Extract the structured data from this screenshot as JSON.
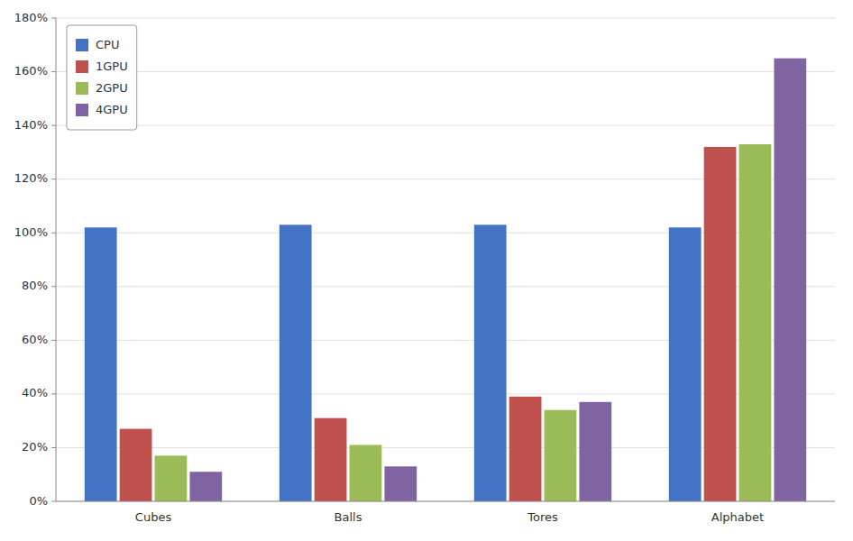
{
  "chart_data": {
    "type": "bar",
    "categories": [
      "Cubes",
      "Balls",
      "Tores",
      "Alphabet"
    ],
    "series": [
      {
        "name": "CPU",
        "color": "#4472C4",
        "values": [
          1.02,
          1.03,
          1.03,
          1.02
        ]
      },
      {
        "name": "1GPU",
        "color": "#C0504D",
        "values": [
          0.27,
          0.31,
          0.39,
          1.32
        ]
      },
      {
        "name": "2GPU",
        "color": "#9BBB59",
        "values": [
          0.17,
          0.21,
          0.34,
          1.33
        ]
      },
      {
        "name": "4GPU",
        "color": "#8064A2",
        "values": [
          0.11,
          0.13,
          0.37,
          1.65
        ]
      }
    ],
    "ylim": [
      0,
      1.8
    ],
    "yticks": [
      {
        "value": 0,
        "label": "0%"
      },
      {
        "value": 0.2,
        "label": "20%"
      },
      {
        "value": 0.4,
        "label": "40%"
      },
      {
        "value": 0.6,
        "label": "60%"
      },
      {
        "value": 0.8,
        "label": "80%"
      },
      {
        "value": 1.0,
        "label": "100%"
      },
      {
        "value": 1.2,
        "label": "120%"
      },
      {
        "value": 1.4,
        "label": "140%"
      },
      {
        "value": 1.6,
        "label": "160%"
      },
      {
        "value": 1.8,
        "label": "180%"
      }
    ],
    "grid": true,
    "legend": "upper left"
  }
}
